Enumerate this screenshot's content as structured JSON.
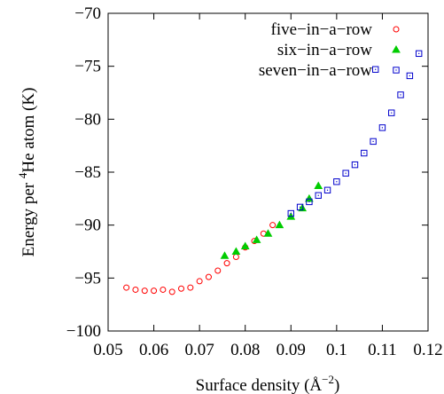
{
  "chart_data": {
    "type": "scatter",
    "xlabel_main": "Surface density (Å",
    "xlabel_sup": "−2",
    "xlabel_end": ")",
    "ylabel_main": "Energy per ",
    "ylabel_sup": "4",
    "ylabel_end": "He atom (K)",
    "xlim": [
      0.05,
      0.12
    ],
    "ylim": [
      -100,
      -70
    ],
    "xticks": [
      0.05,
      0.06,
      0.07,
      0.08,
      0.09,
      0.1,
      0.11,
      0.12
    ],
    "xtick_labels": [
      "0.05",
      "0.06",
      "0.07",
      "0.08",
      "0.09",
      "0.1",
      "0.11",
      "0.12"
    ],
    "yticks": [
      -100,
      -95,
      -90,
      -85,
      -80,
      -75,
      -70
    ],
    "ytick_labels": [
      "−100",
      "−95",
      "−90",
      "−85",
      "−80",
      "−75",
      "−70"
    ],
    "grid": false,
    "legend_position": "top-right",
    "series": [
      {
        "name": "five−in−a−row",
        "marker": "circle",
        "color": "#ff0000",
        "x": [
          0.054,
          0.056,
          0.058,
          0.06,
          0.062,
          0.064,
          0.066,
          0.068,
          0.07,
          0.072,
          0.074,
          0.076,
          0.078,
          0.08,
          0.082,
          0.084,
          0.086
        ],
        "y": [
          -95.9,
          -96.1,
          -96.2,
          -96.2,
          -96.1,
          -96.3,
          -96.0,
          -95.9,
          -95.3,
          -94.9,
          -94.3,
          -93.6,
          -93.0,
          -92.1,
          -91.5,
          -90.8,
          -90.0
        ]
      },
      {
        "name": "six−in−a−row",
        "marker": "triangle",
        "color": "#00cc00",
        "x": [
          0.0755,
          0.078,
          0.08,
          0.0825,
          0.085,
          0.0875,
          0.09,
          0.0925,
          0.094,
          0.096
        ],
        "y": [
          -92.9,
          -92.5,
          -92.0,
          -91.4,
          -90.8,
          -90.0,
          -89.2,
          -88.4,
          -87.5,
          -86.3
        ]
      },
      {
        "name": "seven−in−a−row",
        "marker": "square",
        "color": "#0000cc",
        "x": [
          0.09,
          0.092,
          0.094,
          0.096,
          0.098,
          0.1,
          0.102,
          0.104,
          0.106,
          0.108,
          0.11,
          0.112,
          0.114,
          0.116,
          0.118,
          0.1085
        ],
        "y": [
          -88.9,
          -88.3,
          -87.8,
          -87.2,
          -86.7,
          -85.9,
          -85.1,
          -84.3,
          -83.2,
          -82.1,
          -80.8,
          -79.4,
          -77.7,
          -75.9,
          -73.8,
          -75.3
        ]
      }
    ]
  }
}
